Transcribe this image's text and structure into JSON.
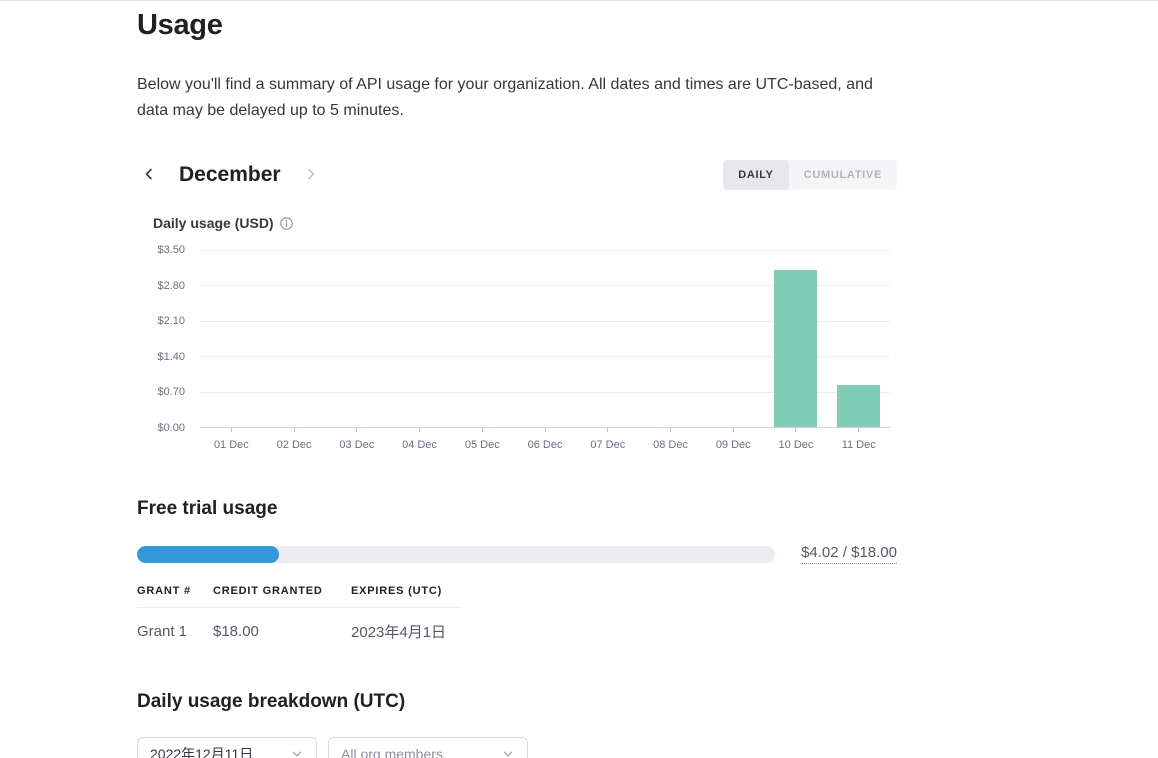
{
  "page": {
    "title": "Usage",
    "description": "Below you'll find a summary of API usage for your organization. All dates and times are UTC-based, and data may be delayed up to 5 minutes."
  },
  "month_nav": {
    "current_month": "December"
  },
  "view_toggle": {
    "options": [
      {
        "label": "DAILY",
        "selected": true
      },
      {
        "label": "CUMULATIVE",
        "selected": false
      }
    ]
  },
  "chart_data": {
    "type": "bar",
    "title": "Daily usage (USD)",
    "categories": [
      "01 Dec",
      "02 Dec",
      "03 Dec",
      "04 Dec",
      "05 Dec",
      "06 Dec",
      "07 Dec",
      "08 Dec",
      "09 Dec",
      "10 Dec",
      "11 Dec"
    ],
    "values": [
      0,
      0,
      0,
      0,
      0,
      0,
      0,
      0,
      0,
      3.1,
      0.84
    ],
    "xlabel": "",
    "ylabel": "",
    "ylim": [
      0,
      3.5
    ],
    "yticks": [
      "$0.00",
      "$0.70",
      "$1.40",
      "$2.10",
      "$2.80",
      "$3.50"
    ],
    "grid": true,
    "legend": false,
    "bar_color": "#80ccb4"
  },
  "free_trial": {
    "heading": "Free trial usage",
    "used": 4.02,
    "limit": 18.0,
    "usage_label": "$4.02 / $18.00",
    "table": {
      "headers": [
        "GRANT #",
        "CREDIT GRANTED",
        "EXPIRES (UTC)"
      ],
      "rows": [
        {
          "grant": "Grant 1",
          "credit": "$18.00",
          "expires": "2023年4月1日"
        }
      ]
    }
  },
  "breakdown": {
    "heading": "Daily usage breakdown (UTC)",
    "date_select": {
      "value": "2022年12月11日"
    },
    "member_select": {
      "value": "All org members"
    }
  },
  "colors": {
    "bar": "#80ccb4",
    "progress": "#3398da",
    "accent_text": "#202123"
  }
}
